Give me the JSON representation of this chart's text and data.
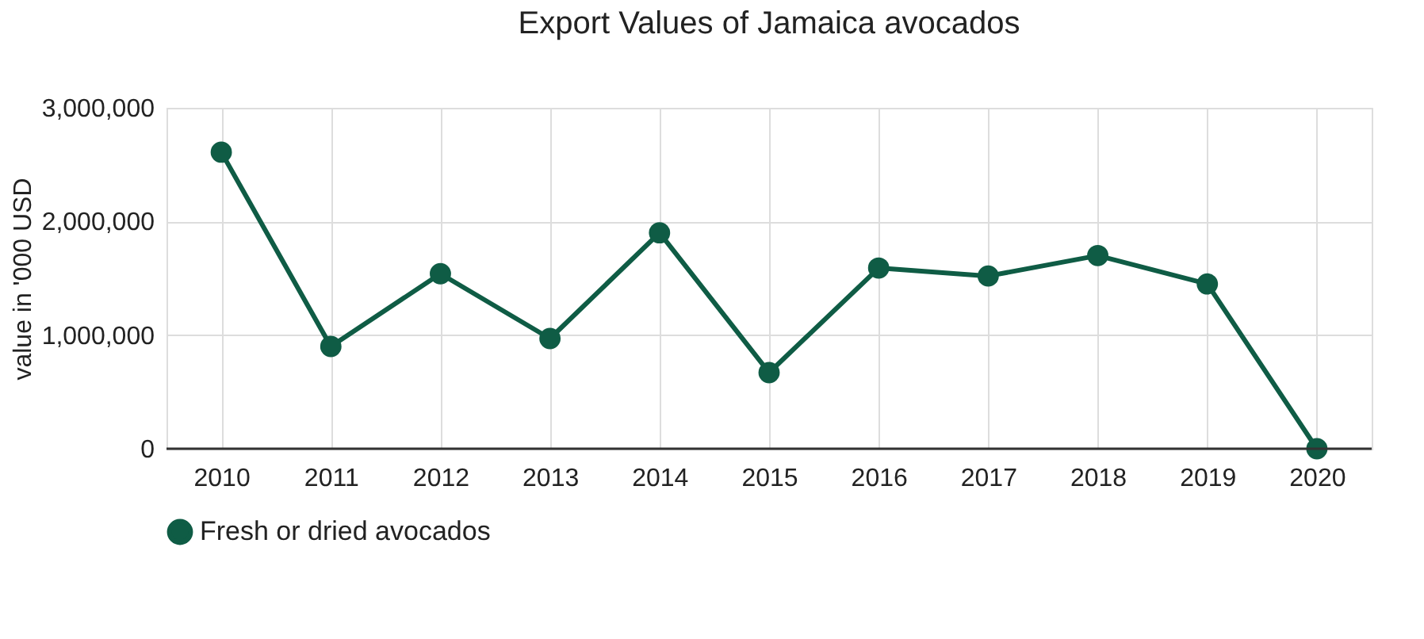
{
  "chart_data": {
    "type": "line",
    "title": "Export Values of Jamaica avocados",
    "ylabel": "value in '000 USD",
    "categories": [
      "2010",
      "2011",
      "2012",
      "2013",
      "2014",
      "2015",
      "2016",
      "2017",
      "2018",
      "2019",
      "2020"
    ],
    "series": [
      {
        "name": "Fresh or dried avocados",
        "color": "#0f5c45",
        "values": [
          2610000,
          900000,
          1540000,
          970000,
          1900000,
          670000,
          1590000,
          1520000,
          1700000,
          1450000,
          0
        ]
      }
    ],
    "ylim": [
      0,
      3000000
    ],
    "yticks": [
      {
        "value": 0,
        "label": "0"
      },
      {
        "value": 1000000,
        "label": "1,000,000"
      },
      {
        "value": 2000000,
        "label": "2,000,000"
      },
      {
        "value": 3000000,
        "label": "3,000,000"
      }
    ],
    "grid": true,
    "legend": "bottom",
    "marker": "circle",
    "line_style": "solid"
  }
}
